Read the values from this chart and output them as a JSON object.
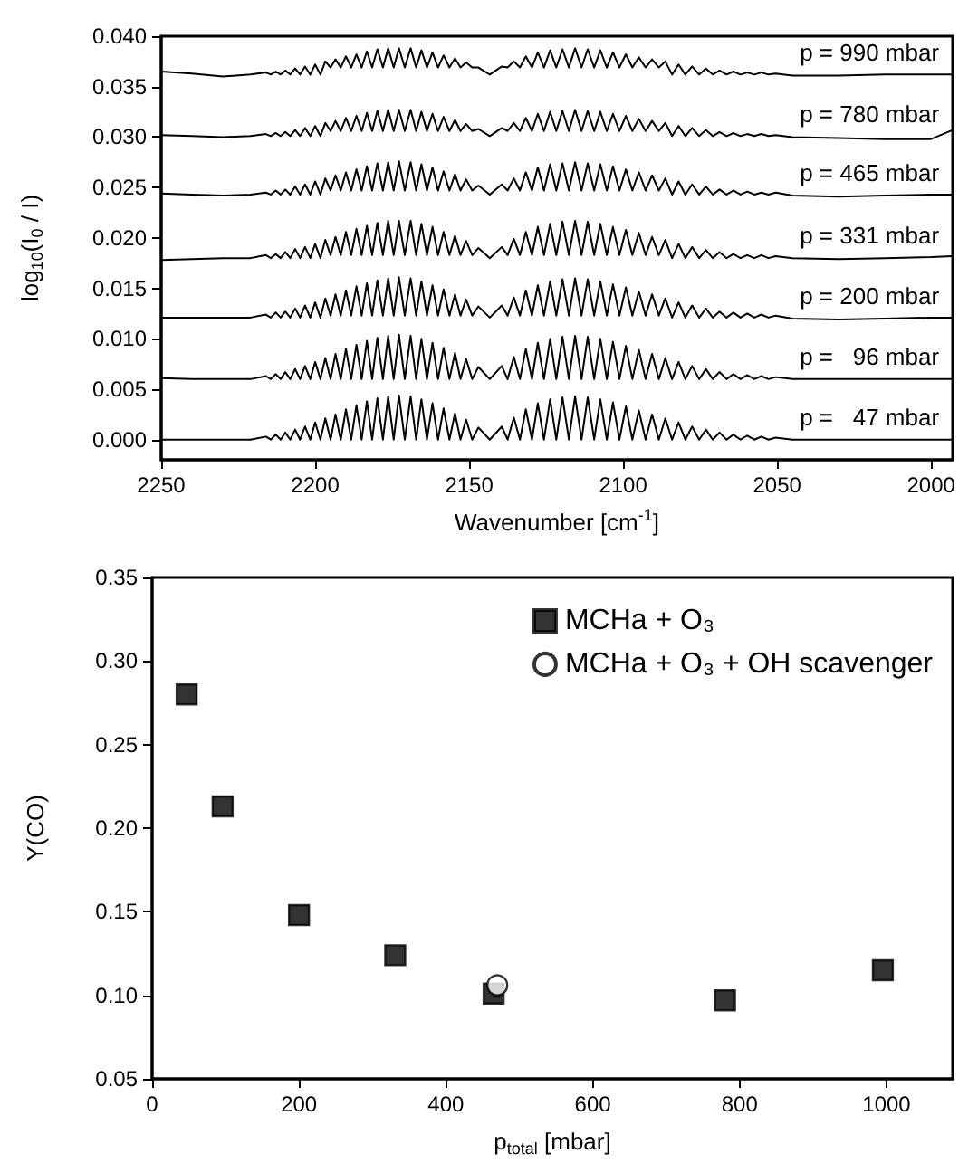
{
  "chart_data": [
    {
      "type": "line",
      "xlabel": "Wavenumber [cm$^{-1}$]",
      "ylabel": "log$_{10}$(I$_{0}$ / I)",
      "line_style": "solid",
      "xlim": [
        2250,
        1993
      ],
      "xticks": [
        2250,
        2200,
        2150,
        2100,
        2050,
        2000
      ],
      "ylim": [
        -0.002,
        0.04
      ],
      "yticks": [
        {
          "value": 0,
          "label": "0.000"
        },
        {
          "value": 0.005,
          "label": "0.005"
        },
        {
          "value": 0.01,
          "label": "0.010"
        },
        {
          "value": 0.015,
          "label": "0.015"
        },
        {
          "value": 0.02,
          "label": "0.020"
        },
        {
          "value": 0.025,
          "label": "0.025"
        },
        {
          "value": 0.03,
          "label": "0.030"
        },
        {
          "value": 0.035,
          "label": "0.035"
        },
        {
          "value": 0.04,
          "label": "0.040"
        }
      ],
      "x": [
        2250,
        2240,
        2230,
        2221,
        2216,
        2214.4,
        2212.8,
        2211.2,
        2209.7,
        2208.1,
        2206.5,
        2204.9,
        2203.3,
        2201.6,
        2200,
        2198.3,
        2196.7,
        2195,
        2193.4,
        2191.7,
        2190,
        2188.3,
        2186.6,
        2184.9,
        2183.2,
        2181.5,
        2179.8,
        2178,
        2176.3,
        2174.5,
        2172.8,
        2170.9,
        2169,
        2167.2,
        2165.5,
        2163.7,
        2161.9,
        2160.1,
        2158.3,
        2156.4,
        2154.6,
        2152.8,
        2151,
        2149,
        2147,
        2143.3,
        2139.4,
        2137.5,
        2135.5,
        2133.5,
        2131.6,
        2129.6,
        2127.7,
        2125.7,
        2123.7,
        2121.7,
        2119.7,
        2117.6,
        2115.6,
        2113.5,
        2111.5,
        2109.4,
        2107.4,
        2105.3,
        2103.3,
        2101.2,
        2099.1,
        2097,
        2094.9,
        2092.7,
        2090.6,
        2088.4,
        2086.3,
        2084.1,
        2082,
        2079.8,
        2077.6,
        2075.3,
        2073.1,
        2070.9,
        2068.7,
        2066.4,
        2064.2,
        2061.9,
        2059.7,
        2057.4,
        2055.1,
        2052.8,
        2050.5,
        2045,
        2030,
        2015,
        2000,
        1993
      ],
      "series": [
        {
          "name": "p = 990 mbar",
          "color": "#000000",
          "values": [
            0.0365,
            0.0363,
            0.036,
            0.0362,
            0.0364,
            0.0362,
            0.0365,
            0.0362,
            0.0366,
            0.0362,
            0.0368,
            0.0362,
            0.037,
            0.0362,
            0.0372,
            0.0362,
            0.0375,
            0.0369,
            0.0377,
            0.0369,
            0.038,
            0.0369,
            0.0382,
            0.0369,
            0.0385,
            0.0369,
            0.0387,
            0.0369,
            0.0388,
            0.0369,
            0.0388,
            0.0369,
            0.0388,
            0.0369,
            0.0386,
            0.0369,
            0.0384,
            0.0369,
            0.0381,
            0.0369,
            0.0378,
            0.0369,
            0.0374,
            0.0369,
            0.0369,
            0.0362,
            0.037,
            0.0369,
            0.0375,
            0.0369,
            0.038,
            0.0369,
            0.0384,
            0.0369,
            0.0386,
            0.0369,
            0.0387,
            0.0369,
            0.0388,
            0.0369,
            0.0387,
            0.0369,
            0.0386,
            0.0369,
            0.0384,
            0.0369,
            0.0382,
            0.0369,
            0.0379,
            0.0369,
            0.0377,
            0.0369,
            0.0375,
            0.0362,
            0.0372,
            0.0362,
            0.037,
            0.0362,
            0.0368,
            0.0362,
            0.0366,
            0.0362,
            0.0365,
            0.0362,
            0.0364,
            0.0362,
            0.0364,
            0.0362,
            0.0363,
            0.0361,
            0.0361,
            0.0362,
            0.0362,
            0.0362
          ]
        },
        {
          "name": "p = 780 mbar",
          "color": "#000000",
          "values": [
            0.0302,
            0.0301,
            0.03,
            0.0301,
            0.0303,
            0.0301,
            0.0304,
            0.0301,
            0.0305,
            0.0301,
            0.0307,
            0.0301,
            0.0309,
            0.0301,
            0.0311,
            0.0301,
            0.0314,
            0.0306,
            0.0316,
            0.0306,
            0.0319,
            0.0306,
            0.0321,
            0.0306,
            0.0324,
            0.0306,
            0.0326,
            0.0306,
            0.0327,
            0.0306,
            0.0327,
            0.0306,
            0.0327,
            0.0306,
            0.0325,
            0.0306,
            0.0323,
            0.0306,
            0.032,
            0.0306,
            0.0317,
            0.0306,
            0.0313,
            0.0306,
            0.0308,
            0.0301,
            0.0309,
            0.0306,
            0.0314,
            0.0306,
            0.0319,
            0.0306,
            0.0323,
            0.0306,
            0.0325,
            0.0306,
            0.0326,
            0.0306,
            0.0327,
            0.0306,
            0.0326,
            0.0306,
            0.0325,
            0.0306,
            0.0323,
            0.0306,
            0.0321,
            0.0306,
            0.0318,
            0.0306,
            0.0316,
            0.0306,
            0.0314,
            0.0301,
            0.0311,
            0.0301,
            0.0309,
            0.0301,
            0.0307,
            0.0301,
            0.0305,
            0.0301,
            0.0304,
            0.0301,
            0.0303,
            0.0301,
            0.0303,
            0.0301,
            0.0302,
            0.03,
            0.0299,
            0.0298,
            0.0298,
            0.0307
          ]
        },
        {
          "name": "p = 465 mbar",
          "color": "#000000",
          "values": [
            0.0244,
            0.0243,
            0.0242,
            0.0243,
            0.0245,
            0.0243,
            0.0247,
            0.0243,
            0.0248,
            0.0243,
            0.0251,
            0.0243,
            0.0253,
            0.0243,
            0.0256,
            0.0243,
            0.0259,
            0.0247,
            0.0262,
            0.0247,
            0.0265,
            0.0247,
            0.0268,
            0.0247,
            0.0271,
            0.0247,
            0.0274,
            0.0247,
            0.0275,
            0.0247,
            0.0276,
            0.0247,
            0.0275,
            0.0247,
            0.0273,
            0.0247,
            0.027,
            0.0247,
            0.0266,
            0.0247,
            0.0263,
            0.0247,
            0.0258,
            0.0247,
            0.0252,
            0.0243,
            0.0253,
            0.0247,
            0.0259,
            0.0247,
            0.0265,
            0.0247,
            0.027,
            0.0247,
            0.0273,
            0.0247,
            0.0274,
            0.0247,
            0.0275,
            0.0247,
            0.0274,
            0.0247,
            0.0273,
            0.0247,
            0.0271,
            0.0247,
            0.0268,
            0.0247,
            0.0265,
            0.0247,
            0.0262,
            0.0247,
            0.0259,
            0.0243,
            0.0256,
            0.0243,
            0.0253,
            0.0243,
            0.0251,
            0.0243,
            0.0248,
            0.0243,
            0.0247,
            0.0243,
            0.0246,
            0.0243,
            0.0245,
            0.0243,
            0.0245,
            0.0242,
            0.0241,
            0.0242,
            0.0243,
            0.0243
          ]
        },
        {
          "name": "p = 331 mbar",
          "color": "#000000",
          "values": [
            0.0178,
            0.0179,
            0.018,
            0.018,
            0.0183,
            0.018,
            0.0184,
            0.018,
            0.0186,
            0.018,
            0.0189,
            0.018,
            0.0191,
            0.018,
            0.0194,
            0.018,
            0.0198,
            0.0183,
            0.0201,
            0.0183,
            0.0206,
            0.0183,
            0.0209,
            0.0183,
            0.0212,
            0.0183,
            0.0215,
            0.0183,
            0.0217,
            0.0183,
            0.0217,
            0.0183,
            0.0217,
            0.0183,
            0.0214,
            0.0183,
            0.0211,
            0.0183,
            0.0206,
            0.0183,
            0.0202,
            0.0183,
            0.0197,
            0.0183,
            0.019,
            0.018,
            0.0191,
            0.0183,
            0.0199,
            0.0183,
            0.0206,
            0.0183,
            0.0211,
            0.0183,
            0.0214,
            0.0183,
            0.0216,
            0.0183,
            0.0217,
            0.0183,
            0.0216,
            0.0183,
            0.0214,
            0.0183,
            0.0211,
            0.0183,
            0.0208,
            0.0183,
            0.0205,
            0.0183,
            0.0201,
            0.0183,
            0.0198,
            0.018,
            0.0194,
            0.018,
            0.0191,
            0.018,
            0.0188,
            0.018,
            0.0186,
            0.018,
            0.0184,
            0.018,
            0.0183,
            0.018,
            0.0183,
            0.018,
            0.0182,
            0.018,
            0.0179,
            0.018,
            0.0181,
            0.0182
          ]
        },
        {
          "name": "p = 200 mbar",
          "color": "#000000",
          "values": [
            0.0121,
            0.0121,
            0.0121,
            0.0121,
            0.0124,
            0.0121,
            0.0126,
            0.0121,
            0.0127,
            0.0121,
            0.013,
            0.0121,
            0.0133,
            0.0121,
            0.0136,
            0.0121,
            0.014,
            0.0123,
            0.0144,
            0.0123,
            0.0148,
            0.0123,
            0.0152,
            0.0123,
            0.0155,
            0.0123,
            0.0158,
            0.0123,
            0.016,
            0.0123,
            0.0161,
            0.0123,
            0.016,
            0.0123,
            0.0157,
            0.0123,
            0.0153,
            0.0123,
            0.0149,
            0.0123,
            0.0144,
            0.0123,
            0.0139,
            0.0123,
            0.0132,
            0.0121,
            0.0133,
            0.0123,
            0.0141,
            0.0123,
            0.0148,
            0.0123,
            0.0153,
            0.0123,
            0.0157,
            0.0123,
            0.0159,
            0.0123,
            0.016,
            0.0123,
            0.0159,
            0.0123,
            0.0157,
            0.0123,
            0.0154,
            0.0123,
            0.0151,
            0.0123,
            0.0147,
            0.0123,
            0.0144,
            0.0123,
            0.014,
            0.0121,
            0.0136,
            0.0121,
            0.0133,
            0.0121,
            0.013,
            0.0121,
            0.0127,
            0.0121,
            0.0126,
            0.0121,
            0.0125,
            0.0121,
            0.0124,
            0.0121,
            0.0123,
            0.012,
            0.0119,
            0.012,
            0.0121,
            0.0121
          ]
        },
        {
          "name": "p =   96 mbar",
          "color": "#000000",
          "values": [
            0.0061,
            0.006,
            0.006,
            0.006,
            0.0063,
            0.006,
            0.0065,
            0.006,
            0.0067,
            0.006,
            0.007,
            0.006,
            0.0073,
            0.006,
            0.0077,
            0.006,
            0.0081,
            0.006,
            0.0085,
            0.006,
            0.009,
            0.006,
            0.0094,
            0.006,
            0.0098,
            0.006,
            0.0101,
            0.006,
            0.0103,
            0.006,
            0.0104,
            0.006,
            0.0103,
            0.006,
            0.01,
            0.006,
            0.0096,
            0.006,
            0.0091,
            0.006,
            0.0086,
            0.006,
            0.008,
            0.006,
            0.0072,
            0.006,
            0.0073,
            0.006,
            0.0082,
            0.006,
            0.009,
            0.006,
            0.0096,
            0.006,
            0.01,
            0.006,
            0.0102,
            0.006,
            0.0103,
            0.006,
            0.0102,
            0.006,
            0.01,
            0.006,
            0.0097,
            0.006,
            0.0093,
            0.006,
            0.0089,
            0.006,
            0.0085,
            0.006,
            0.0081,
            0.006,
            0.0077,
            0.006,
            0.0073,
            0.006,
            0.007,
            0.006,
            0.0067,
            0.006,
            0.0065,
            0.006,
            0.0064,
            0.006,
            0.0063,
            0.006,
            0.0062,
            0.006,
            0.006,
            0.006,
            0.006,
            0.006
          ]
        },
        {
          "name": "p =   47 mbar",
          "color": "#000000",
          "values": [
            0,
            0,
            0,
            0,
            0.0003,
            0,
            0.0005,
            0,
            0.0007,
            0,
            0.001,
            0,
            0.0013,
            0,
            0.0017,
            0,
            0.0021,
            0,
            0.0025,
            0,
            0.003,
            0,
            0.0034,
            0,
            0.0038,
            0,
            0.0041,
            0,
            0.0043,
            0,
            0.0044,
            0,
            0.0043,
            0,
            0.004,
            0,
            0.0036,
            0,
            0.0031,
            0,
            0.0026,
            0,
            0.002,
            0,
            0.0012,
            0,
            0.0013,
            0,
            0.0022,
            0,
            0.003,
            0,
            0.0036,
            0,
            0.004,
            0,
            0.0042,
            0,
            0.0043,
            0,
            0.0042,
            0,
            0.004,
            0,
            0.0037,
            0,
            0.0033,
            0,
            0.0029,
            0,
            0.0025,
            0,
            0.0021,
            0,
            0.0017,
            0,
            0.0013,
            0,
            0.001,
            0,
            0.0007,
            0,
            0.0005,
            0,
            0.0004,
            0,
            0.0003,
            0,
            0.0002,
            0,
            0,
            0,
            0,
            0
          ]
        }
      ]
    },
    {
      "type": "scatter",
      "xlabel": "p$_{total}$ [mbar]",
      "ylabel": "Y(CO)",
      "legend": "top right",
      "xlim": [
        0,
        1090
      ],
      "xticks": [
        0,
        200,
        400,
        600,
        800,
        1000
      ],
      "ylim": [
        0.05,
        0.35
      ],
      "yticks": [
        {
          "value": 0.05,
          "label": "0.05"
        },
        {
          "value": 0.1,
          "label": "0.10"
        },
        {
          "value": 0.15,
          "label": "0.15"
        },
        {
          "value": 0.2,
          "label": "0.20"
        },
        {
          "value": 0.25,
          "label": "0.25"
        },
        {
          "value": 0.3,
          "label": "0.30"
        },
        {
          "value": 0.35,
          "label": "0.35"
        }
      ],
      "x": [
        47,
        96,
        200,
        331,
        465,
        780,
        995
      ],
      "series": [
        {
          "name": "MCHa + O₃",
          "color": "#000000",
          "marker": "square",
          "values": [
            0.28,
            0.213,
            0.148,
            0.124,
            0.101,
            0.097,
            0.115
          ]
        },
        {
          "name": "MCHa + O₃ + OH scavenger",
          "color": "#ffffff",
          "marker": "circle",
          "x": [
            470
          ],
          "values": [
            0.106
          ]
        }
      ]
    }
  ]
}
